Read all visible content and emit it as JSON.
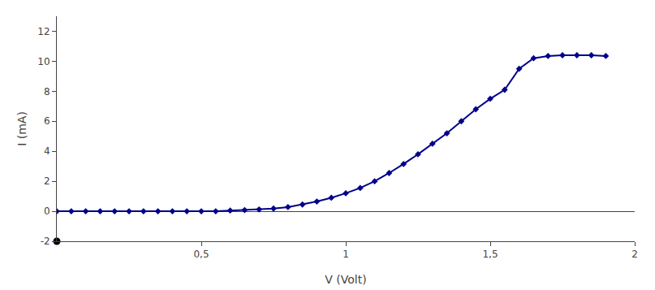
{
  "chart_data": {
    "type": "line",
    "x_label": "V (Volt)",
    "y_label": "I (mA)",
    "x": [
      0.0,
      0.05,
      0.1,
      0.15,
      0.2,
      0.25,
      0.3,
      0.35,
      0.4,
      0.45,
      0.5,
      0.55,
      0.6,
      0.65,
      0.7,
      0.75,
      0.8,
      0.85,
      0.9,
      0.95,
      1.0,
      1.05,
      1.1,
      1.15,
      1.2,
      1.25,
      1.3,
      1.35,
      1.4,
      1.45,
      1.5,
      1.55,
      1.6,
      1.65,
      1.7,
      1.75,
      1.8,
      1.85,
      1.9
    ],
    "series": [
      {
        "color": "#00008B",
        "marker": "diamond",
        "line_style": "solid",
        "values": [
          0.0,
          0.0,
          0.0,
          0.0,
          0.0,
          0.0,
          0.0,
          0.0,
          0.0,
          0.0,
          0.0,
          0.0,
          0.05,
          0.08,
          0.12,
          0.18,
          0.28,
          0.45,
          0.65,
          0.9,
          1.2,
          1.55,
          2.0,
          2.55,
          3.15,
          3.8,
          4.5,
          5.2,
          6.0,
          6.8,
          7.5,
          8.1,
          9.5,
          10.2,
          10.35,
          10.4,
          10.4,
          10.4,
          10.35
        ]
      },
      {
        "type": "scatter",
        "color": "black",
        "marker": "circle",
        "x": [
          0
        ],
        "values": [
          -2
        ]
      }
    ],
    "xlim": [
      0,
      2
    ],
    "ylim": [
      -2,
      13
    ],
    "xticks": [
      {
        "value": 0.5,
        "label": "0,5"
      },
      1,
      {
        "value": 1.5,
        "label": "1,5"
      },
      2
    ],
    "yticks": [
      -2,
      0,
      2,
      4,
      6,
      8,
      10,
      12
    ],
    "grid": false
  }
}
